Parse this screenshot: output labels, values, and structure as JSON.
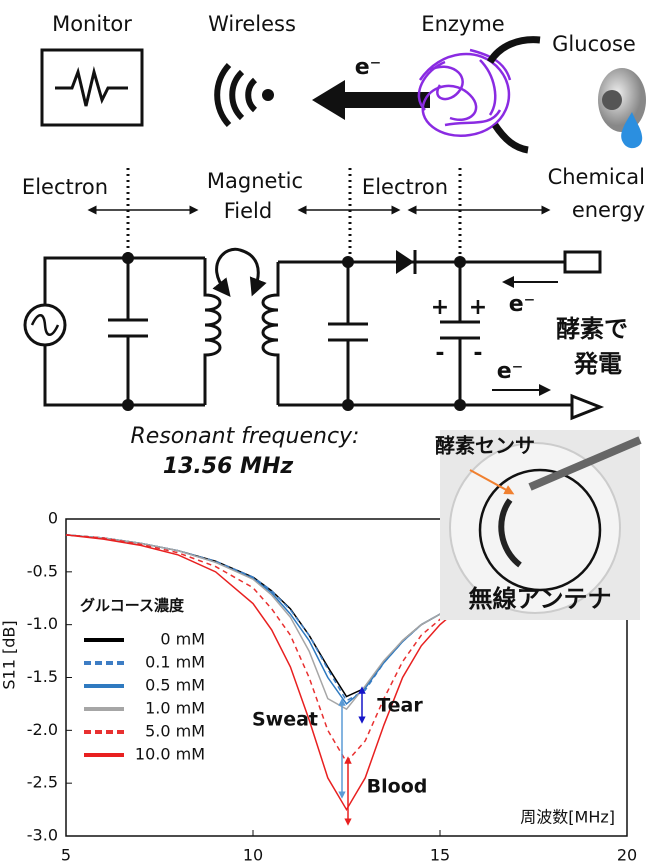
{
  "diagram": {
    "monitor": "Monitor",
    "wireless": "Wireless",
    "enzyme": "Enzyme",
    "glucose": "Glucose",
    "electron_top": "e⁻",
    "chemical_energy": [
      "Chemical",
      "energy"
    ],
    "electron_left": "Electron",
    "magnetic_field": [
      "Magnetic",
      "Field"
    ],
    "electron_mid": "Electron",
    "electron_in": "e⁻",
    "electron_out": "e⁻",
    "power_generation": [
      "酵素で",
      "発電"
    ],
    "resonant": "Resonant frequency:",
    "frequency": "13.56 MHz",
    "photo_sensor": "酵素センサ",
    "photo_antenna": "無線アンテナ"
  },
  "chart_data": {
    "type": "line",
    "y_label": "S11 [dB]",
    "x_label": "周波数[MHz]",
    "legend_title": "グルコース濃度",
    "x": [
      5,
      6,
      7,
      8,
      9,
      10,
      10.5,
      11,
      11.5,
      12,
      12.5,
      13,
      13.5,
      14,
      14.5,
      15,
      15.5
    ],
    "series": [
      {
        "name": "0 mM",
        "color": "#000000",
        "dashed": false,
        "values": [
          -0.15,
          -0.18,
          -0.23,
          -0.3,
          -0.4,
          -0.55,
          -0.68,
          -0.85,
          -1.1,
          -1.4,
          -1.68,
          -1.6,
          -1.35,
          -1.15,
          -1.0,
          -0.9,
          -0.8
        ]
      },
      {
        "name": "0.1 mM",
        "color": "#3d7dc4",
        "dashed": true,
        "values": [
          -0.15,
          -0.18,
          -0.23,
          -0.3,
          -0.4,
          -0.55,
          -0.68,
          -0.86,
          -1.1,
          -1.42,
          -1.72,
          -1.62,
          -1.36,
          -1.16,
          -1.0,
          -0.9,
          -0.8
        ]
      },
      {
        "name": "0.5 mM",
        "color": "#2f7ac0",
        "dashed": false,
        "values": [
          -0.15,
          -0.18,
          -0.23,
          -0.3,
          -0.41,
          -0.56,
          -0.7,
          -0.9,
          -1.15,
          -1.5,
          -1.75,
          -1.6,
          -1.36,
          -1.16,
          -1.0,
          -0.9,
          -0.8
        ]
      },
      {
        "name": "1.0 mM",
        "color": "#a6a6a6",
        "dashed": false,
        "values": [
          -0.15,
          -0.18,
          -0.23,
          -0.3,
          -0.41,
          -0.57,
          -0.72,
          -0.93,
          -1.25,
          -1.7,
          -1.8,
          -1.58,
          -1.34,
          -1.15,
          -1.0,
          -0.9,
          -0.8
        ]
      },
      {
        "name": "5.0 mM",
        "color": "#e83030",
        "dashed": true,
        "values": [
          -0.15,
          -0.18,
          -0.24,
          -0.32,
          -0.45,
          -0.65,
          -0.85,
          -1.1,
          -1.5,
          -2.0,
          -2.3,
          -2.1,
          -1.7,
          -1.35,
          -1.1,
          -0.95,
          -0.82
        ]
      },
      {
        "name": "10.0 mM",
        "color": "#e82020",
        "dashed": false,
        "values": [
          -0.15,
          -0.19,
          -0.25,
          -0.34,
          -0.5,
          -0.8,
          -1.05,
          -1.4,
          -1.9,
          -2.45,
          -2.75,
          -2.45,
          -1.95,
          -1.5,
          -1.2,
          -1.0,
          -0.85
        ]
      }
    ],
    "annotations": [
      {
        "text": "Sweat",
        "color": "#5b9bd5"
      },
      {
        "text": "Tear",
        "color": "#1515c8"
      },
      {
        "text": "Blood",
        "color": "#e82020"
      }
    ],
    "xlim": [
      5,
      20
    ],
    "ylim": [
      -3,
      0
    ],
    "xticks": [
      5,
      10,
      15,
      20
    ],
    "yticks": [
      0,
      -0.5,
      {
        "value": -1,
        "label": "-1.0"
      },
      -1.5,
      {
        "value": -2,
        "label": "-2.0"
      },
      -2.5,
      {
        "value": -3,
        "label": "-3.0"
      }
    ]
  }
}
